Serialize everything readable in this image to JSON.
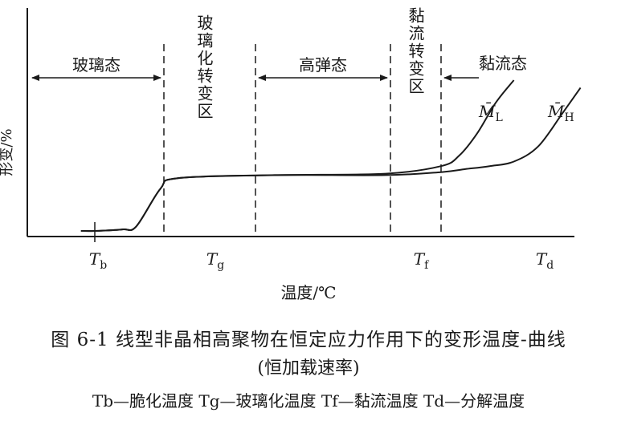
{
  "figure_caption": "图 6-1  线型非晶相高聚物在恒定应力作用下的变形温度-曲线",
  "figure_subcaption": "(恒加载速率)",
  "legend_line": "Tb—脆化温度   Tg—玻璃化温度   Tf—黏流温度   Td—分解温度",
  "chart_data": {
    "type": "line",
    "title": "",
    "xlabel": "温度/℃",
    "ylabel": "形变/%",
    "x_ticks": [
      {
        "label": "Tb",
        "x": 0.0
      },
      {
        "label": "Tg",
        "x": 1.0
      },
      {
        "label": "Tf",
        "x": 2.0
      },
      {
        "label": "Td",
        "x": 3.0
      }
    ],
    "regions": [
      {
        "label": "玻璃态"
      },
      {
        "label": "玻璃化转变区"
      },
      {
        "label": "高弹态"
      },
      {
        "label": "黏流转变区"
      },
      {
        "label": "黏流态"
      }
    ],
    "series": [
      {
        "name": "M̄L",
        "x": [
          -0.2,
          0.0,
          0.4,
          0.6,
          0.95,
          1.05,
          1.4,
          1.8,
          2.0,
          2.15,
          2.3,
          2.45,
          2.6
        ],
        "y": [
          0.0,
          0.0,
          0.01,
          0.03,
          0.28,
          0.35,
          0.37,
          0.38,
          0.43,
          0.5,
          0.65,
          0.85,
          1.0
        ]
      },
      {
        "name": "M̄H",
        "x": [
          -0.2,
          0.0,
          0.4,
          0.6,
          0.95,
          1.05,
          1.4,
          1.8,
          2.0,
          2.2,
          2.4,
          2.6,
          2.8,
          3.0,
          3.15
        ],
        "y": [
          0.0,
          0.0,
          0.01,
          0.03,
          0.28,
          0.35,
          0.37,
          0.37,
          0.39,
          0.41,
          0.43,
          0.46,
          0.56,
          0.78,
          0.95
        ]
      }
    ]
  }
}
